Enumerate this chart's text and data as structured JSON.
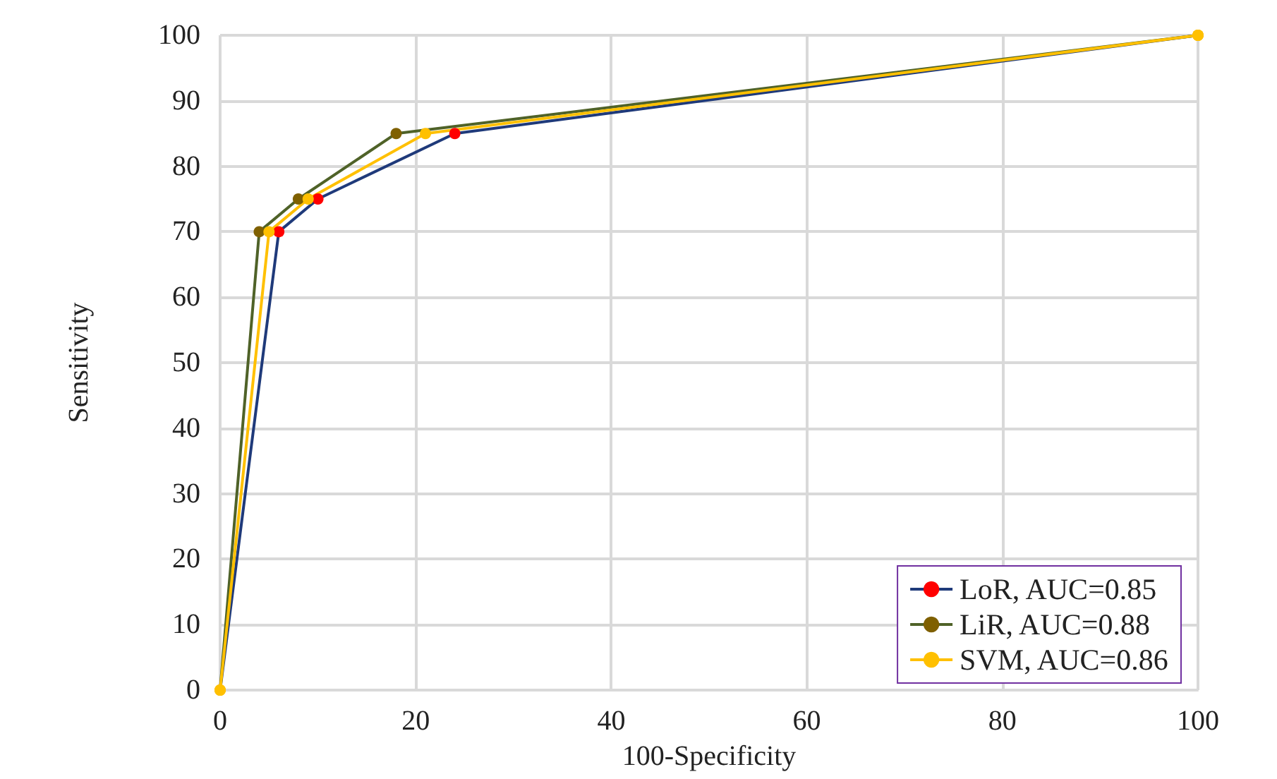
{
  "chart_data": {
    "type": "line",
    "xlabel": "100-Specificity",
    "ylabel": "Sensitivity",
    "series": [
      {
        "name": "LoR, AUC=0.85",
        "color": "#1f3a7a",
        "colors": [
          "#ffc000",
          "#ff0000",
          "#ff0000",
          "#ff0000",
          "#ffc000"
        ],
        "x": [
          0,
          6,
          10,
          24,
          100
        ],
        "values": [
          0,
          70,
          75,
          85,
          100
        ]
      },
      {
        "name": "LiR, AUC=0.88",
        "color": "#4f6228",
        "colors": [
          "#ffc000",
          "#7f6000",
          "#7f6000",
          "#7f6000",
          "#ffc000"
        ],
        "x": [
          0,
          4,
          8,
          18,
          100
        ],
        "values": [
          0,
          70,
          75,
          85,
          100
        ]
      },
      {
        "name": "SVM, AUC=0.86",
        "color": "#ffc000",
        "colors": [
          "#ffc000",
          "#ffc000",
          "#ffc000",
          "#ffc000",
          "#ffc000"
        ],
        "x": [
          0,
          5,
          9,
          21,
          100
        ],
        "values": [
          0,
          70,
          75,
          85,
          100
        ]
      }
    ],
    "xlim": [
      0,
      100
    ],
    "xticks": [
      0,
      20,
      40,
      60,
      80,
      100
    ],
    "ylim": [
      0,
      100
    ],
    "yticks": [
      0,
      10,
      20,
      30,
      40,
      50,
      60,
      70,
      80,
      90,
      100
    ],
    "grid": true,
    "legend": "bottom right",
    "marker": "circle",
    "line_style": "solid"
  }
}
